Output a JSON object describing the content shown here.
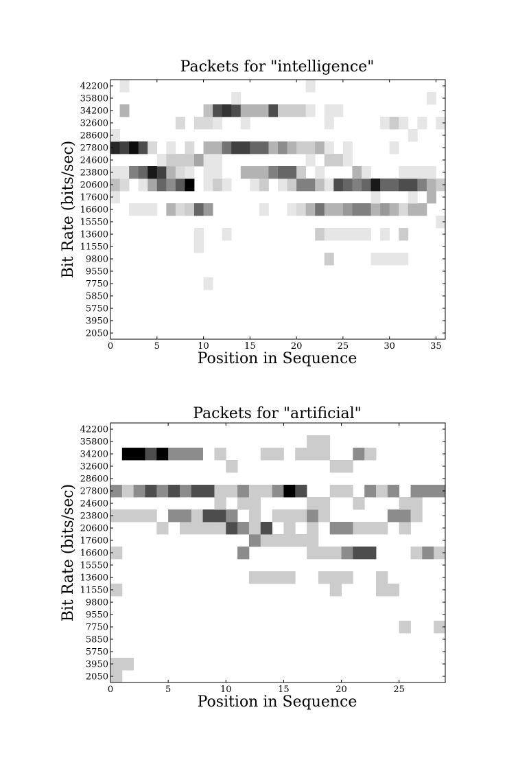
{
  "chart_data": [
    {
      "type": "heatmap",
      "title": "Packets for \"intelligence\"",
      "xlabel": "Position in Sequence",
      "ylabel": "Bit Rate (bits/sec)",
      "xlim": [
        0,
        36
      ],
      "x_ticks": [
        "0",
        "5",
        "10",
        "15",
        "20",
        "25",
        "30",
        "35"
      ],
      "y_categories": [
        "2050",
        "3950",
        "5750",
        "5850",
        "7750",
        "9550",
        "9800",
        "11550",
        "13600",
        "15550",
        "16600",
        "17600",
        "20600",
        "23800",
        "24600",
        "27800",
        "28600",
        "32600",
        "34200",
        "35800",
        "42200"
      ],
      "colormap": "gray_r",
      "cells": {
        "42200": [
          [
            1,
            0.1
          ],
          [
            21,
            0.1
          ]
        ],
        "35800": [
          [
            13,
            0.1
          ],
          [
            34,
            0.1
          ]
        ],
        "34200": [
          [
            1,
            0.3
          ],
          [
            10,
            0.25
          ],
          [
            11,
            0.7
          ],
          [
            12,
            0.8
          ],
          [
            13,
            0.7
          ],
          [
            14,
            0.3
          ],
          [
            15,
            0.3
          ],
          [
            16,
            0.3
          ],
          [
            17,
            0.7
          ],
          [
            18,
            0.2
          ],
          [
            19,
            0.2
          ],
          [
            20,
            0.2
          ],
          [
            21,
            0.1
          ],
          [
            23,
            0.1
          ],
          [
            24,
            0.1
          ]
        ],
        "32600": [
          [
            7,
            0.15
          ],
          [
            9,
            0.15
          ],
          [
            10,
            0.15
          ],
          [
            11,
            0.1
          ],
          [
            14,
            0.1
          ],
          [
            23,
            0.1
          ],
          [
            29,
            0.1
          ],
          [
            30,
            0.2
          ],
          [
            31,
            0.1
          ],
          [
            33,
            0.1
          ],
          [
            35,
            0.1
          ]
        ],
        "28600": [
          [
            0,
            0.1
          ],
          [
            32,
            0.1
          ]
        ],
        "27800": [
          [
            0,
            0.85
          ],
          [
            1,
            0.75
          ],
          [
            2,
            0.95
          ],
          [
            3,
            0.7
          ],
          [
            4,
            0.15
          ],
          [
            6,
            0.1
          ],
          [
            8,
            0.15
          ],
          [
            10,
            0.3
          ],
          [
            11,
            0.3
          ],
          [
            12,
            0.55
          ],
          [
            13,
            0.75
          ],
          [
            14,
            0.75
          ],
          [
            15,
            0.6
          ],
          [
            16,
            0.6
          ],
          [
            17,
            0.3
          ],
          [
            18,
            0.45
          ],
          [
            19,
            0.3
          ],
          [
            20,
            0.2
          ],
          [
            21,
            0.2
          ],
          [
            22,
            0.3
          ],
          [
            23,
            0.1
          ],
          [
            25,
            0.1
          ],
          [
            30,
            0.1
          ]
        ],
        "24600": [
          [
            5,
            0.1
          ],
          [
            6,
            0.2
          ],
          [
            7,
            0.2
          ],
          [
            8,
            0.2
          ],
          [
            9,
            0.35
          ],
          [
            10,
            0.1
          ],
          [
            11,
            0.1
          ],
          [
            21,
            0.1
          ],
          [
            23,
            0.2
          ],
          [
            24,
            0.2
          ],
          [
            25,
            0.1
          ]
        ],
        "23800": [
          [
            0,
            0.1
          ],
          [
            1,
            0.1
          ],
          [
            2,
            0.5
          ],
          [
            3,
            0.6
          ],
          [
            4,
            0.9
          ],
          [
            5,
            0.75
          ],
          [
            6,
            0.3
          ],
          [
            7,
            0.15
          ],
          [
            8,
            0.1
          ],
          [
            10,
            0.1
          ],
          [
            11,
            0.1
          ],
          [
            14,
            0.3
          ],
          [
            15,
            0.3
          ],
          [
            16,
            0.3
          ],
          [
            17,
            0.5
          ],
          [
            18,
            0.6
          ],
          [
            19,
            0.6
          ],
          [
            20,
            0.2
          ],
          [
            22,
            0.1
          ],
          [
            26,
            0.3
          ],
          [
            27,
            0.1
          ],
          [
            31,
            0.1
          ],
          [
            32,
            0.1
          ],
          [
            33,
            0.1
          ],
          [
            34,
            0.1
          ]
        ],
        "20600": [
          [
            0,
            0.25
          ],
          [
            1,
            0.15
          ],
          [
            3,
            0.1
          ],
          [
            4,
            0.35
          ],
          [
            5,
            0.6
          ],
          [
            6,
            0.45
          ],
          [
            7,
            0.65
          ],
          [
            8,
            1.0
          ],
          [
            10,
            0.1
          ],
          [
            11,
            0.2
          ],
          [
            12,
            0.1
          ],
          [
            15,
            0.1
          ],
          [
            16,
            0.2
          ],
          [
            18,
            0.1
          ],
          [
            19,
            0.2
          ],
          [
            20,
            0.5
          ],
          [
            21,
            0.5
          ],
          [
            22,
            0.25
          ],
          [
            23,
            0.1
          ],
          [
            24,
            0.7
          ],
          [
            25,
            0.6
          ],
          [
            26,
            0.5
          ],
          [
            27,
            0.6
          ],
          [
            28,
            0.9
          ],
          [
            29,
            0.6
          ],
          [
            30,
            0.6
          ],
          [
            31,
            0.7
          ],
          [
            32,
            0.7
          ],
          [
            33,
            0.5
          ],
          [
            34,
            0.3
          ],
          [
            35,
            0.2
          ]
        ],
        "17600": [
          [
            0,
            0.1
          ],
          [
            28,
            0.1
          ],
          [
            32,
            0.1
          ],
          [
            34,
            0.3
          ]
        ],
        "16600": [
          [
            2,
            0.1
          ],
          [
            3,
            0.1
          ],
          [
            4,
            0.1
          ],
          [
            6,
            0.3
          ],
          [
            7,
            0.15
          ],
          [
            8,
            0.2
          ],
          [
            9,
            0.6
          ],
          [
            10,
            0.4
          ],
          [
            16,
            0.1
          ],
          [
            19,
            0.1
          ],
          [
            20,
            0.15
          ],
          [
            21,
            0.3
          ],
          [
            22,
            0.55
          ],
          [
            23,
            0.3
          ],
          [
            24,
            0.3
          ],
          [
            25,
            0.4
          ],
          [
            26,
            0.5
          ],
          [
            27,
            0.5
          ],
          [
            28,
            0.3
          ],
          [
            29,
            0.4
          ],
          [
            30,
            0.3
          ],
          [
            31,
            0.15
          ],
          [
            32,
            0.3
          ],
          [
            33,
            0.3
          ]
        ],
        "15550": [
          [
            35,
            0.1
          ]
        ],
        "13600": [
          [
            9,
            0.1
          ],
          [
            12,
            0.1
          ],
          [
            22,
            0.2
          ],
          [
            23,
            0.1
          ],
          [
            24,
            0.1
          ],
          [
            25,
            0.1
          ],
          [
            26,
            0.1
          ],
          [
            27,
            0.1
          ],
          [
            29,
            0.1
          ],
          [
            31,
            0.2
          ]
        ],
        "11550": [
          [
            9,
            0.1
          ]
        ],
        "9800": [
          [
            23,
            0.2
          ],
          [
            28,
            0.1
          ],
          [
            29,
            0.1
          ],
          [
            30,
            0.1
          ],
          [
            31,
            0.1
          ]
        ],
        "7750": [
          [
            10,
            0.1
          ]
        ]
      }
    },
    {
      "type": "heatmap",
      "title": "Packets for \"artificial\"",
      "xlabel": "Position in Sequence",
      "ylabel": "Bit Rate (bits/sec)",
      "xlim": [
        0,
        29
      ],
      "x_ticks": [
        "0",
        "5",
        "10",
        "15",
        "20",
        "25"
      ],
      "y_categories": [
        "2050",
        "3950",
        "5750",
        "5850",
        "7750",
        "9550",
        "9800",
        "11550",
        "13600",
        "15550",
        "16600",
        "17600",
        "20600",
        "23800",
        "24600",
        "27800",
        "28600",
        "32600",
        "34200",
        "35800",
        "42200"
      ],
      "colormap": "gray_r",
      "cells": {
        "35800": [
          [
            17,
            0.2
          ],
          [
            18,
            0.2
          ]
        ],
        "34200": [
          [
            1,
            1.0
          ],
          [
            2,
            1.0
          ],
          [
            3,
            0.7
          ],
          [
            4,
            1.0
          ],
          [
            5,
            0.45
          ],
          [
            6,
            0.45
          ],
          [
            7,
            0.45
          ],
          [
            9,
            0.2
          ],
          [
            13,
            0.2
          ],
          [
            14,
            0.2
          ],
          [
            16,
            0.2
          ],
          [
            17,
            0.2
          ],
          [
            18,
            0.2
          ],
          [
            21,
            0.45
          ],
          [
            22,
            0.2
          ]
        ],
        "32600": [
          [
            10,
            0.2
          ],
          [
            19,
            0.2
          ],
          [
            20,
            0.2
          ]
        ],
        "27800": [
          [
            0,
            0.45
          ],
          [
            1,
            0.2
          ],
          [
            2,
            0.45
          ],
          [
            3,
            0.7
          ],
          [
            4,
            0.45
          ],
          [
            5,
            0.7
          ],
          [
            6,
            0.45
          ],
          [
            7,
            0.7
          ],
          [
            8,
            0.7
          ],
          [
            9,
            0.2
          ],
          [
            10,
            0.2
          ],
          [
            11,
            0.45
          ],
          [
            12,
            0.2
          ],
          [
            13,
            0.2
          ],
          [
            14,
            0.45
          ],
          [
            15,
            1.0
          ],
          [
            16,
            0.7
          ],
          [
            19,
            0.2
          ],
          [
            20,
            0.2
          ],
          [
            22,
            0.45
          ],
          [
            23,
            0.2
          ],
          [
            24,
            0.45
          ],
          [
            26,
            0.45
          ],
          [
            27,
            0.45
          ],
          [
            28,
            0.45
          ]
        ],
        "24600": [
          [
            9,
            0.2
          ],
          [
            11,
            0.2
          ],
          [
            12,
            0.2
          ],
          [
            17,
            0.2
          ],
          [
            18,
            0.2
          ],
          [
            21,
            0.2
          ],
          [
            25,
            0.2
          ],
          [
            26,
            0.2
          ]
        ],
        "23800": [
          [
            0,
            0.2
          ],
          [
            1,
            0.2
          ],
          [
            2,
            0.2
          ],
          [
            3,
            0.2
          ],
          [
            5,
            0.45
          ],
          [
            6,
            0.45
          ],
          [
            7,
            0.2
          ],
          [
            8,
            0.7
          ],
          [
            9,
            0.7
          ],
          [
            10,
            0.45
          ],
          [
            12,
            0.2
          ],
          [
            14,
            0.2
          ],
          [
            15,
            0.2
          ],
          [
            16,
            0.2
          ],
          [
            17,
            0.45
          ],
          [
            18,
            0.2
          ],
          [
            24,
            0.45
          ],
          [
            25,
            0.45
          ],
          [
            26,
            0.2
          ]
        ],
        "20600": [
          [
            4,
            0.2
          ],
          [
            6,
            0.2
          ],
          [
            7,
            0.2
          ],
          [
            8,
            0.2
          ],
          [
            9,
            0.2
          ],
          [
            10,
            0.7
          ],
          [
            11,
            0.45
          ],
          [
            12,
            0.2
          ],
          [
            13,
            0.7
          ],
          [
            15,
            0.2
          ],
          [
            17,
            0.2
          ],
          [
            19,
            0.45
          ],
          [
            20,
            0.45
          ],
          [
            21,
            0.2
          ],
          [
            22,
            0.2
          ],
          [
            23,
            0.2
          ],
          [
            25,
            0.2
          ]
        ],
        "17600": [
          [
            12,
            0.45
          ],
          [
            13,
            0.2
          ],
          [
            14,
            0.2
          ],
          [
            15,
            0.2
          ],
          [
            16,
            0.2
          ],
          [
            17,
            0.2
          ]
        ],
        "16600": [
          [
            0,
            0.2
          ],
          [
            11,
            0.45
          ],
          [
            17,
            0.2
          ],
          [
            18,
            0.2
          ],
          [
            19,
            0.2
          ],
          [
            20,
            0.45
          ],
          [
            21,
            0.7
          ],
          [
            22,
            0.7
          ],
          [
            26,
            0.2
          ],
          [
            27,
            0.45
          ],
          [
            28,
            0.2
          ]
        ],
        "13600": [
          [
            12,
            0.2
          ],
          [
            13,
            0.2
          ],
          [
            14,
            0.2
          ],
          [
            15,
            0.2
          ],
          [
            18,
            0.2
          ],
          [
            19,
            0.2
          ],
          [
            20,
            0.2
          ],
          [
            23,
            0.2
          ]
        ],
        "11550": [
          [
            0,
            0.2
          ],
          [
            19,
            0.2
          ],
          [
            23,
            0.2
          ],
          [
            24,
            0.2
          ]
        ],
        "7750": [
          [
            25,
            0.2
          ],
          [
            28,
            0.2
          ]
        ],
        "3950": [
          [
            0,
            0.2
          ],
          [
            1,
            0.2
          ]
        ],
        "2050": [
          [
            0,
            0.2
          ]
        ]
      }
    }
  ]
}
